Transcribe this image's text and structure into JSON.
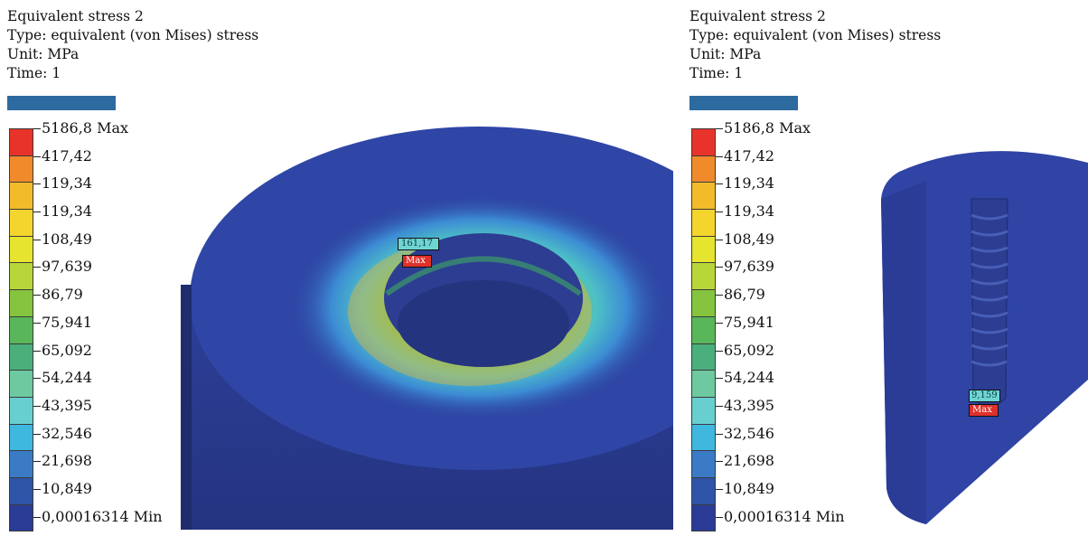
{
  "colors": {
    "bar": "#2d6a9f",
    "body_blue": "#2d3f9a",
    "legend": [
      "#e8332a",
      "#f08a2a",
      "#f2bb2a",
      "#f4d52e",
      "#e6e42e",
      "#b8d63a",
      "#86c440",
      "#5ab65a",
      "#4aaf7a",
      "#6ec9a0",
      "#68cfcf",
      "#3fb8e0",
      "#3b7bc6",
      "#2f55a8",
      "#2a3c96"
    ]
  },
  "left_panel": {
    "title": "Equivalent stress 2",
    "type": "Type: equivalent (von Mises) stress",
    "unit": "Unit: MPa",
    "time": "Time: 1",
    "legend_labels": [
      "5186,8 Max",
      "417,42",
      "119,34",
      "119,34",
      "108,49",
      "97,639",
      "86,79",
      "75,941",
      "65,092",
      "54,244",
      "43,395",
      "32,546",
      "21,698",
      "10,849",
      "0,00016314 Min"
    ],
    "probe_value": "161,17",
    "probe_max": "Max"
  },
  "right_panel": {
    "title": "Equivalent stress 2",
    "type": "Type: equivalent (von Mises) stress",
    "unit": "Unit: MPa",
    "time": "Time: 1",
    "legend_labels": [
      "5186,8 Max",
      "417,42",
      "119,34",
      "119,34",
      "108,49",
      "97,639",
      "86,79",
      "75,941",
      "65,092",
      "54,244",
      "43,395",
      "32,546",
      "21,698",
      "10,849",
      "0,00016314 Min"
    ],
    "probe_value": "9,159",
    "probe_max": "Max"
  }
}
